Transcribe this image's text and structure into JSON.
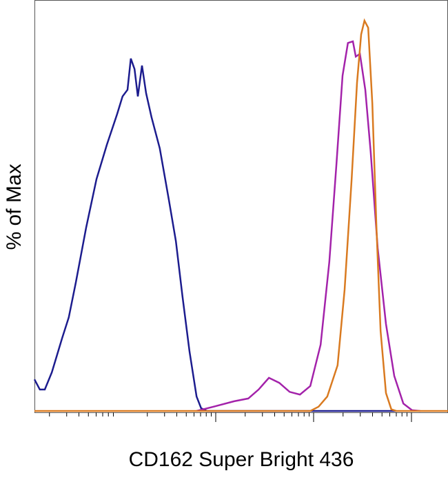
{
  "chart_data": {
    "type": "line",
    "x_label": "CD162 Super Bright 436",
    "y_label": "% of Max",
    "xlim": [
      0,
      100
    ],
    "ylim": [
      0,
      100
    ],
    "series": [
      {
        "color": "#1c1c8e",
        "x": [
          0,
          1.3,
          2.5,
          4.2,
          6.7,
          8.3,
          10,
          12.5,
          15,
          17.5,
          20,
          21.3,
          22.5,
          23.3,
          24.2,
          25,
          26,
          27,
          28.3,
          30.3,
          32.5,
          34.2,
          35.8,
          37.5,
          39.2,
          40.3,
          41.7,
          87.5
        ],
        "values": [
          8.1,
          5.5,
          5.5,
          9.9,
          18.7,
          24,
          32.9,
          47,
          59.4,
          68.2,
          76.1,
          80.6,
          82.3,
          90.3,
          87.6,
          80.6,
          88.5,
          81.4,
          75.3,
          67.3,
          54.1,
          43.5,
          29.3,
          15.2,
          3.7,
          0.7,
          0,
          0
        ]
      },
      {
        "color": "#a322aa",
        "x": [
          39.2,
          43.3,
          48.3,
          51.7,
          54.2,
          56.7,
          59.2,
          61.7,
          64.2,
          66.7,
          69.2,
          71.3,
          73,
          74.5,
          75.8,
          77,
          77.7,
          78.7,
          80,
          81.3,
          83,
          85,
          87,
          89.2,
          91.3,
          93.3
        ],
        "values": [
          0,
          1.1,
          2.5,
          3.2,
          5.5,
          8.5,
          7.2,
          4.9,
          4.2,
          6.4,
          17,
          38.2,
          62.9,
          85.9,
          94.3,
          94.7,
          90.8,
          91.5,
          82.3,
          66.4,
          41.7,
          22.3,
          9,
          1.9,
          0.2,
          0
        ]
      },
      {
        "color": "#d97a20",
        "x": [
          0,
          66.7,
          68.7,
          70.8,
          73.3,
          75,
          76.7,
          78,
          79,
          79.8,
          80.7,
          81.7,
          82.7,
          83.7,
          85,
          86.3,
          87.5,
          100
        ],
        "values": [
          0,
          0,
          1.1,
          3.7,
          11.7,
          31.1,
          59.4,
          84.1,
          96.5,
          100,
          98.2,
          78.8,
          47,
          20.5,
          4.6,
          0.4,
          0,
          0
        ]
      }
    ]
  }
}
